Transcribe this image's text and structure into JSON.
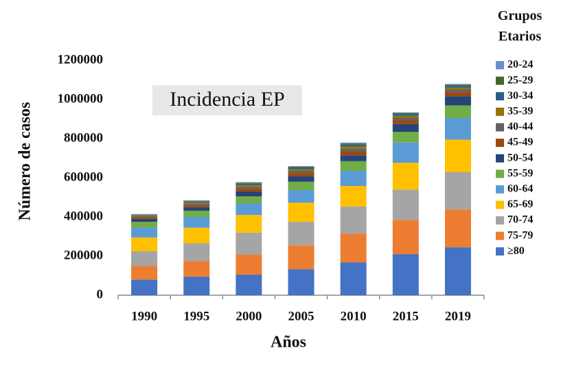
{
  "chart_data": {
    "type": "stacked_bar",
    "annotation": "Incidencia EP",
    "x_label": "Años",
    "y_label": "Número de casos",
    "legend_title": "Grupos Etarios",
    "legend_position": "right",
    "categories": [
      "1990",
      "1995",
      "2000",
      "2005",
      "2010",
      "2015",
      "2019"
    ],
    "ylim": [
      0,
      1200000
    ],
    "yticks": [
      0,
      200000,
      400000,
      600000,
      800000,
      1000000,
      1200000
    ],
    "series": [
      {
        "name": "20-24",
        "color": "#698ed0",
        "values": [
          2000,
          3000,
          4000,
          4000,
          5000,
          4000,
          5000
        ]
      },
      {
        "name": "25-29",
        "color": "#43682b",
        "values": [
          2000,
          4000,
          5000,
          5000,
          6000,
          6000,
          6000
        ]
      },
      {
        "name": "30-34",
        "color": "#255e91",
        "values": [
          3000,
          4000,
          6000,
          7000,
          8000,
          8000,
          8000
        ]
      },
      {
        "name": "35-39",
        "color": "#997300",
        "values": [
          4000,
          6000,
          8000,
          9000,
          11000,
          10000,
          10000
        ]
      },
      {
        "name": "40-44",
        "color": "#636363",
        "values": [
          6000,
          8000,
          10000,
          12000,
          15000,
          14000,
          14000
        ]
      },
      {
        "name": "45-49",
        "color": "#9e480e",
        "values": [
          8000,
          10000,
          15000,
          16000,
          20000,
          18000,
          20000
        ]
      },
      {
        "name": "50-54",
        "color": "#264478",
        "values": [
          15000,
          18000,
          25000,
          27000,
          30000,
          40000,
          47000
        ]
      },
      {
        "name": "55-59",
        "color": "#70ad47",
        "values": [
          30000,
          32000,
          35000,
          43000,
          50000,
          55000,
          65000
        ]
      },
      {
        "name": "60-64",
        "color": "#5b9bd5",
        "values": [
          50000,
          55000,
          60000,
          64000,
          77000,
          103000,
          110000
        ]
      },
      {
        "name": "65-69",
        "color": "#ffc000",
        "values": [
          70000,
          80000,
          90000,
          98000,
          105000,
          137000,
          165000
        ]
      },
      {
        "name": "70-74",
        "color": "#a5a5a5",
        "values": [
          75000,
          90000,
          113000,
          120000,
          138000,
          155000,
          192000
        ]
      },
      {
        "name": "75-79",
        "color": "#ed7d31",
        "values": [
          70000,
          80000,
          102000,
          122000,
          147000,
          175000,
          193000
        ]
      },
      {
        "name": "≥80",
        "color": "#4472c4",
        "values": [
          80000,
          95000,
          105000,
          133000,
          168000,
          210000,
          245000
        ]
      }
    ]
  }
}
